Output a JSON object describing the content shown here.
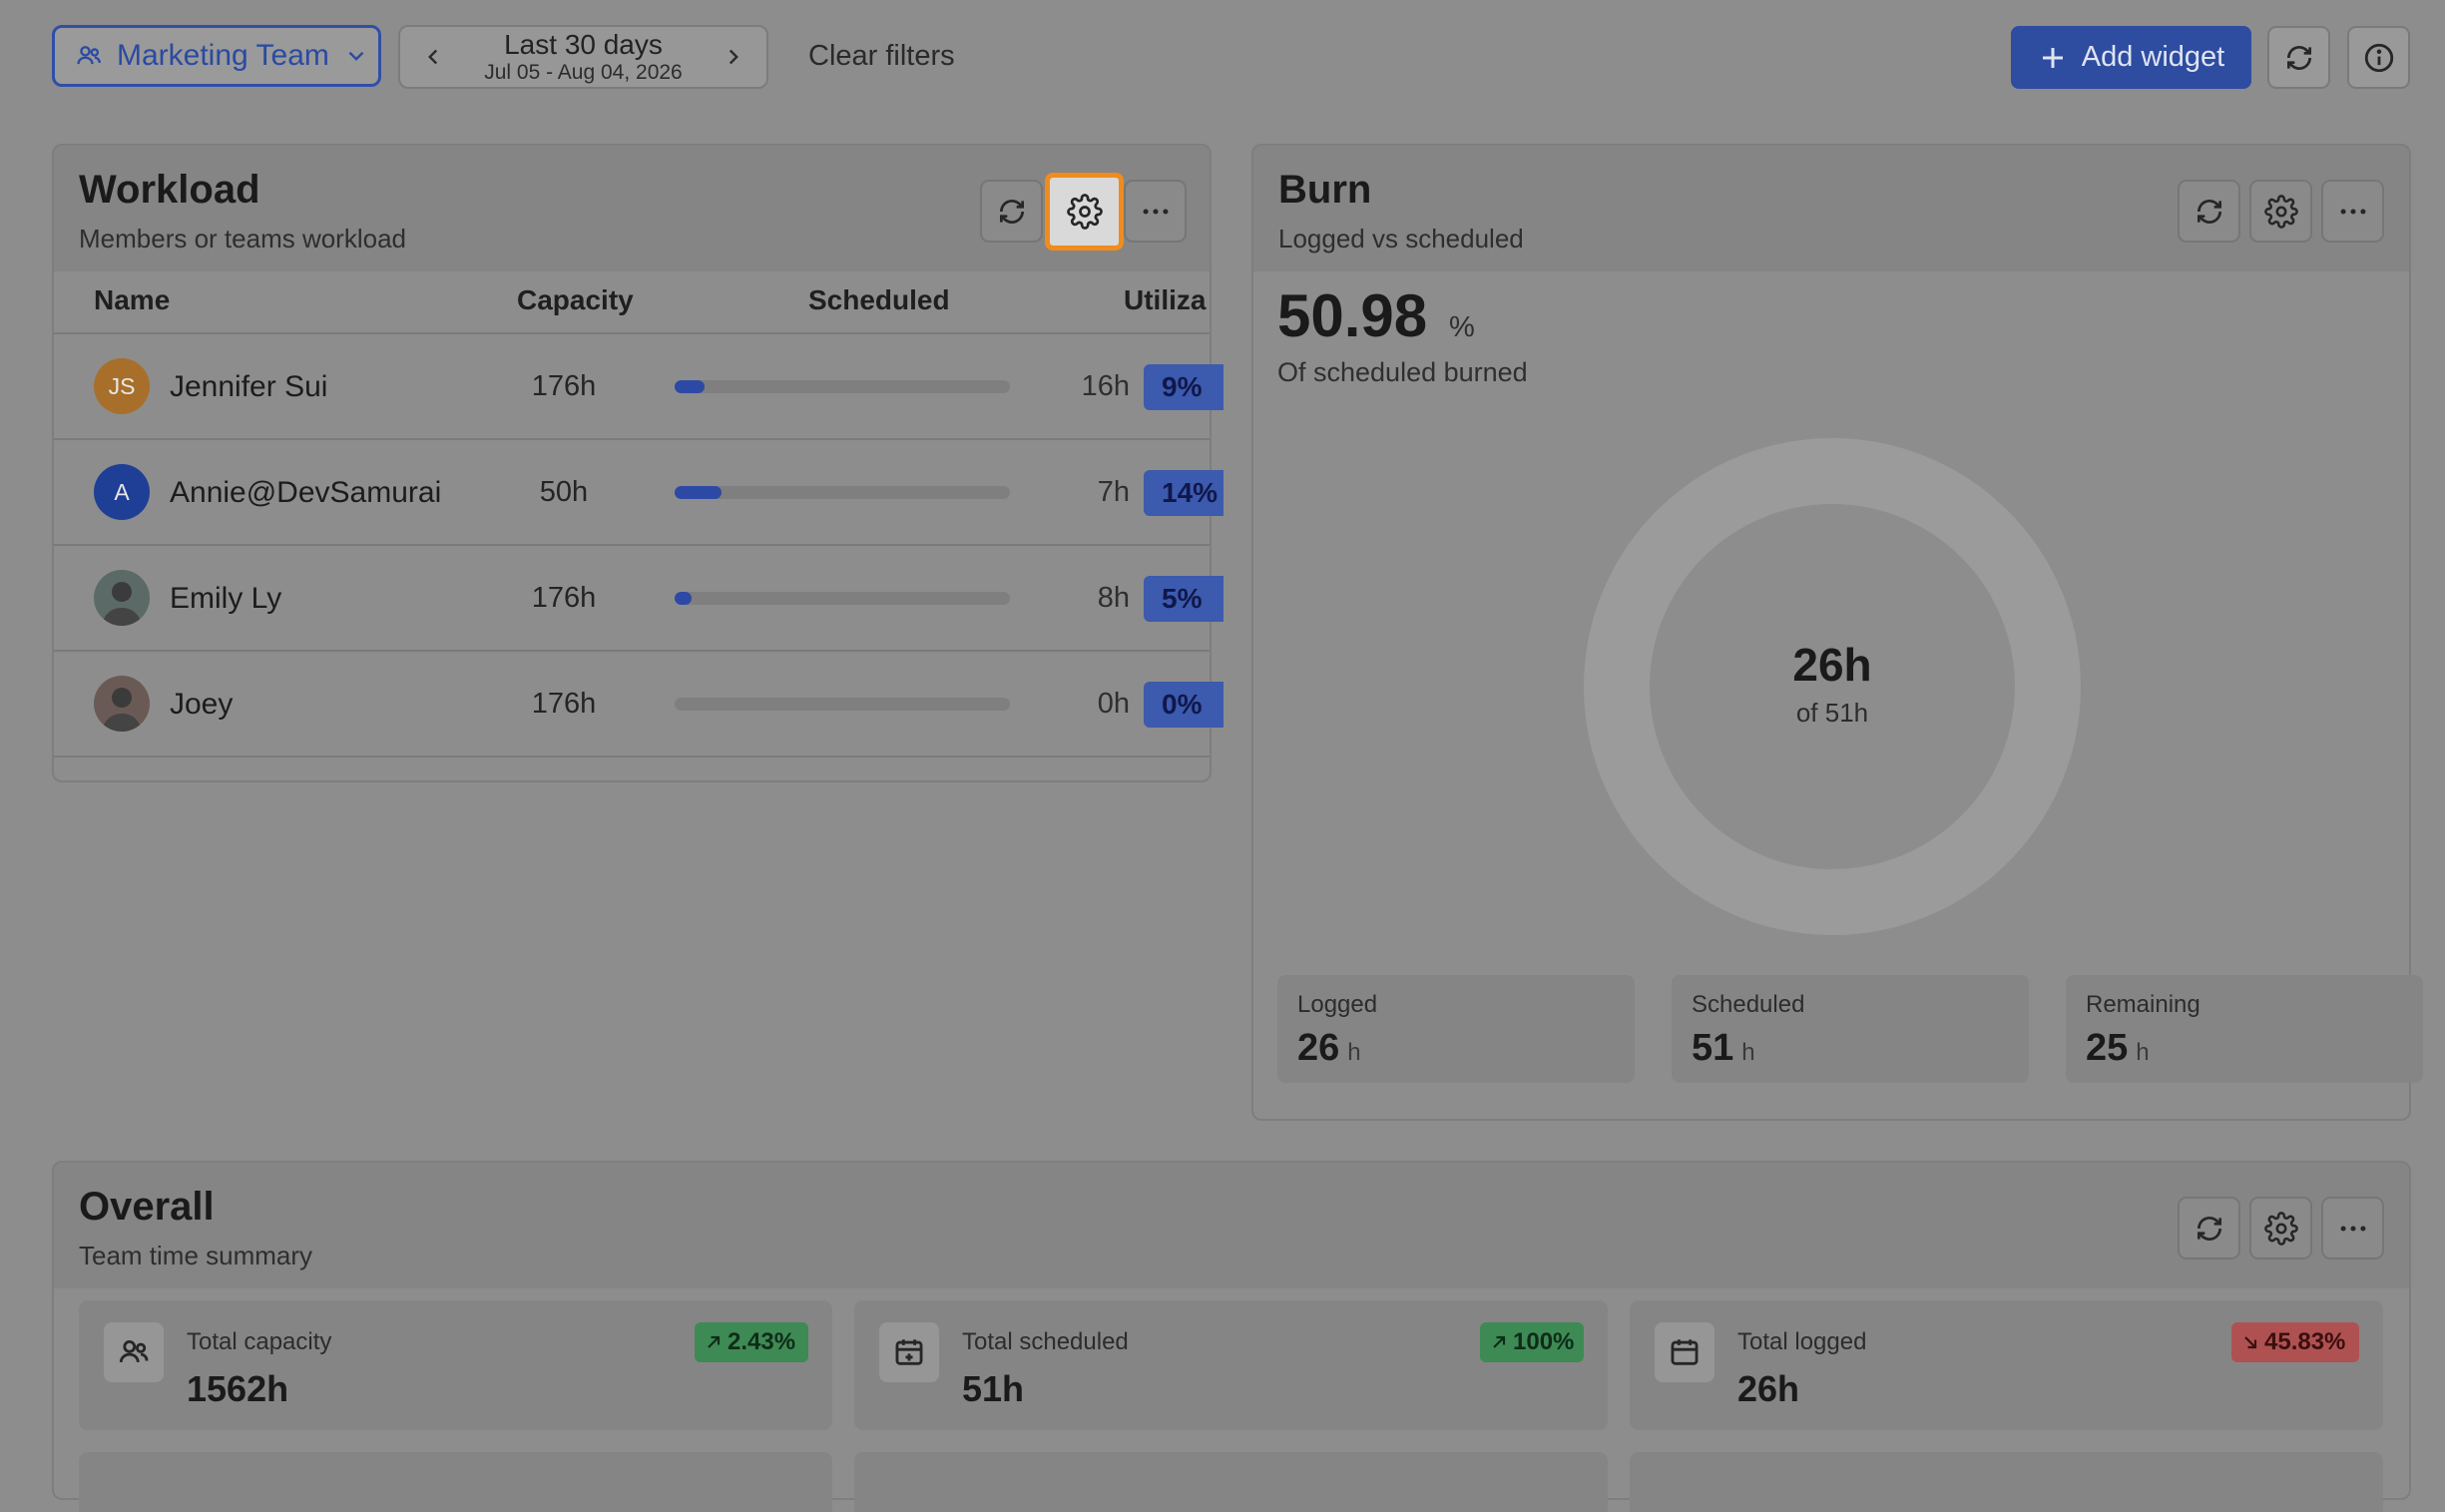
{
  "toolbar": {
    "team_label": "Marketing Team",
    "date_title": "Last 30 days",
    "date_range": "Jul 05 - Aug 04, 2026",
    "clear_filters": "Clear filters",
    "add_widget": "Add widget"
  },
  "workload": {
    "title": "Workload",
    "subtitle": "Members or teams workload",
    "columns": {
      "name": "Name",
      "capacity": "Capacity",
      "scheduled": "Scheduled",
      "utilization": "Utiliza"
    },
    "rows": [
      {
        "initials": "JS",
        "name": "Jennifer Sui",
        "capacity": "176h",
        "scheduled": "16h",
        "utilization": "9%",
        "progress": 0.09,
        "avatar_color": "#a86f2a"
      },
      {
        "initials": "A",
        "name": "Annie@DevSamurai",
        "capacity": "50h",
        "scheduled": "7h",
        "utilization": "14%",
        "progress": 0.14,
        "avatar_color": "#1f3f96"
      },
      {
        "initials": "",
        "name": "Emily Ly",
        "capacity": "176h",
        "scheduled": "8h",
        "utilization": "5%",
        "progress": 0.05,
        "avatar_color": "#5b6a66"
      },
      {
        "initials": "",
        "name": "Joey",
        "capacity": "176h",
        "scheduled": "0h",
        "utilization": "0%",
        "progress": 0.0,
        "avatar_color": "#6a5a55"
      }
    ]
  },
  "burn": {
    "title": "Burn",
    "subtitle": "Logged vs scheduled",
    "percent": "50.98",
    "percent_unit": "%",
    "percent_label": "Of scheduled burned",
    "center_value": "26h",
    "center_sub": "of 51h",
    "logged_fraction": 0.5098,
    "colors": {
      "logged": "#356b47",
      "remaining": "#9b9b9b"
    },
    "stats": [
      {
        "label": "Logged",
        "value": "26",
        "unit": "h"
      },
      {
        "label": "Scheduled",
        "value": "51",
        "unit": "h"
      },
      {
        "label": "Remaining",
        "value": "25",
        "unit": "h"
      }
    ]
  },
  "overall": {
    "title": "Overall",
    "subtitle": "Team time summary",
    "tiles": [
      {
        "icon": "users-icon",
        "label": "Total capacity",
        "value": "1562h",
        "change": "2.43%",
        "direction": "up"
      },
      {
        "icon": "calendar-plus-icon",
        "label": "Total scheduled",
        "value": "51h",
        "change": "100%",
        "direction": "up"
      },
      {
        "icon": "calendar-icon",
        "label": "Total logged",
        "value": "26h",
        "change": "45.83%",
        "direction": "down"
      }
    ]
  }
}
